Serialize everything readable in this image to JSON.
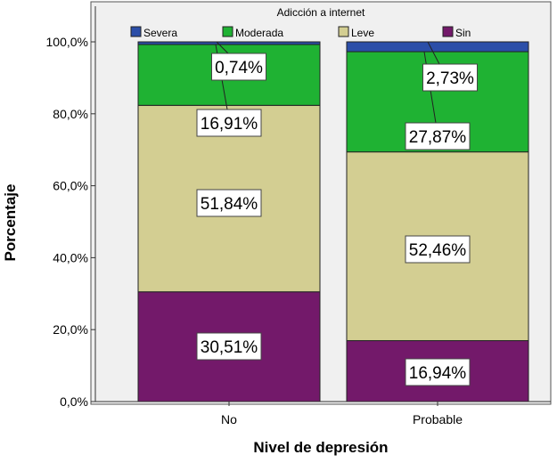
{
  "chart_data": {
    "type": "bar",
    "stacked": true,
    "xlabel": "Nivel de depresión",
    "ylabel": "Porcentaje",
    "legend_title": "Adicción a internet",
    "legend_position": "top",
    "categories": [
      "No",
      "Probable"
    ],
    "ylim": [
      0,
      100
    ],
    "yticks": [
      "0,0%",
      "20,0%",
      "40,0%",
      "60,0%",
      "80,0%",
      "100,0%"
    ],
    "grid": false,
    "series": [
      {
        "name": "Sin",
        "color": "#73196a",
        "values": [
          30.51,
          16.94
        ],
        "labels": [
          "30,51%",
          "16,94%"
        ]
      },
      {
        "name": "Leve",
        "color": "#d3ce92",
        "values": [
          51.84,
          52.46
        ],
        "labels": [
          "51,84%",
          "52,46%"
        ]
      },
      {
        "name": "Moderada",
        "color": "#1fb233",
        "values": [
          16.91,
          27.87
        ],
        "labels": [
          "16,91%",
          "27,87%"
        ]
      },
      {
        "name": "Severa",
        "color": "#2b4ea8",
        "values": [
          0.74,
          2.73
        ],
        "labels": [
          "0,74%",
          "2,73%"
        ]
      }
    ],
    "legend_order": [
      "Severa",
      "Moderada",
      "Leve",
      "Sin"
    ]
  }
}
